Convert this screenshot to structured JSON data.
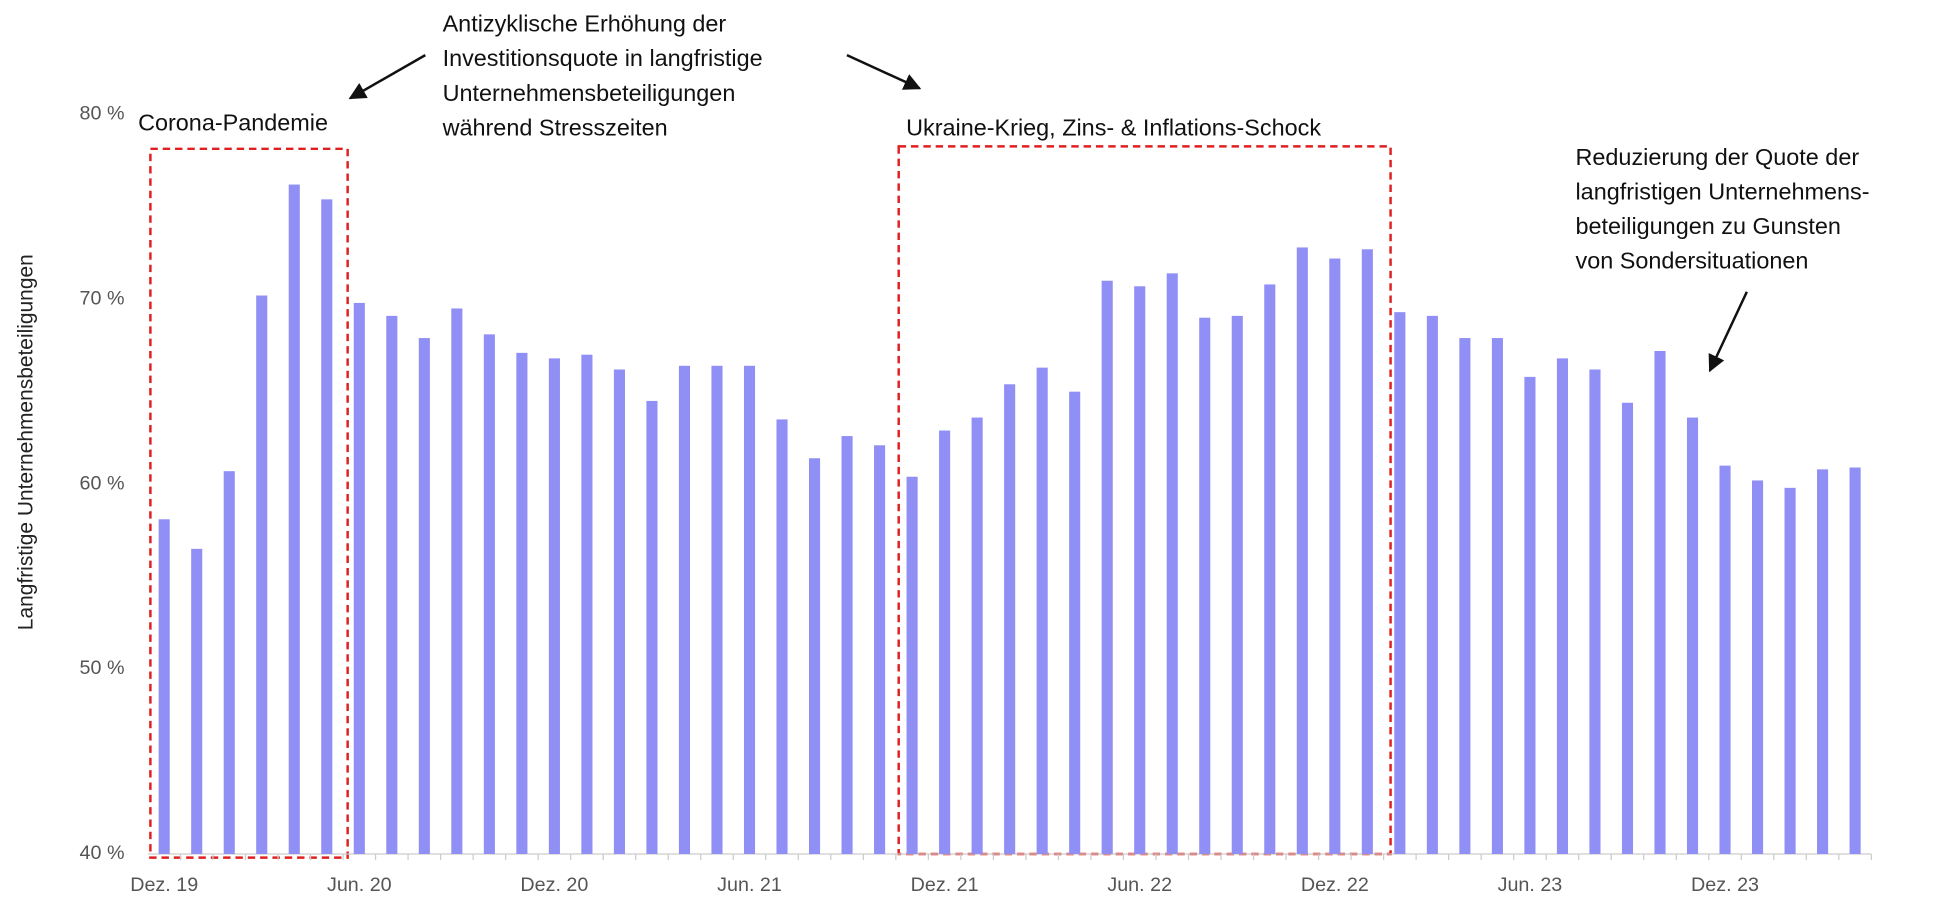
{
  "chart_data": {
    "type": "bar",
    "y_axis_label": "Langfristige Unternehmensbeteiligungen",
    "categories": [
      "Dez. 19",
      null,
      null,
      null,
      null,
      null,
      "Jun. 20",
      null,
      null,
      null,
      null,
      null,
      "Dez. 20",
      null,
      null,
      null,
      null,
      null,
      "Jun. 21",
      null,
      null,
      null,
      null,
      null,
      "Dez. 21",
      null,
      null,
      null,
      null,
      null,
      "Jun. 22",
      null,
      null,
      null,
      null,
      null,
      "Dez. 22",
      null,
      null,
      null,
      null,
      null,
      "Jun. 23",
      null,
      null,
      null,
      null,
      null,
      "Dez. 23",
      null,
      null,
      null,
      null
    ],
    "values": [
      58.1,
      56.5,
      60.7,
      70.2,
      76.2,
      75.4,
      69.8,
      69.1,
      67.9,
      69.5,
      68.1,
      67.1,
      66.8,
      67.0,
      66.2,
      64.5,
      66.4,
      66.4,
      66.4,
      63.5,
      61.4,
      62.6,
      62.1,
      60.4,
      62.9,
      63.6,
      65.4,
      66.3,
      65.0,
      71.0,
      70.7,
      71.4,
      69.0,
      69.1,
      70.8,
      72.8,
      72.2,
      72.7,
      69.3,
      69.1,
      67.9,
      67.9,
      65.8,
      66.8,
      66.2,
      64.4,
      67.2,
      63.6,
      61.0,
      60.2,
      59.8,
      60.8,
      60.9
    ],
    "color": "#8f8ff5",
    "ylim": [
      40,
      80
    ],
    "yticks": [
      {
        "value": 40,
        "label": "40 %"
      },
      {
        "value": 50,
        "label": "50 %"
      },
      {
        "value": 60,
        "label": "60 %"
      },
      {
        "value": 70,
        "label": "70 %"
      },
      {
        "value": 80,
        "label": "80 %"
      }
    ],
    "grid": false,
    "annotations": {
      "corona": "Corona-Pandemie",
      "ukraine": "Ukraine-Krieg, Zins- & Inflations-Schock",
      "antizyklisch": [
        "Antizyklische Erhöhung der",
        "Investitionsquote in langfristige",
        "Unternehmensbeteiligungen",
        "während Stresszeiten"
      ],
      "reduzierung": [
        "Reduzierung der Quote der",
        "langfristigen Unternehmens-",
        "beteiligungen zu Gunsten",
        "von Sondersituationen"
      ]
    }
  }
}
